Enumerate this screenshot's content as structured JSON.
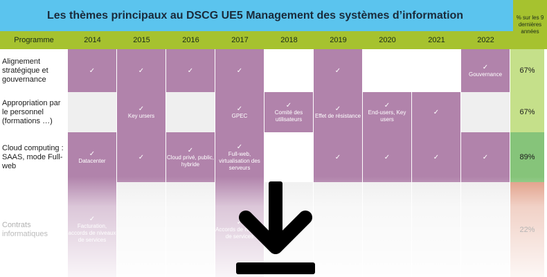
{
  "title": "Les thèmes principaux au DSCG UE5 Management des systèmes d’information",
  "pct_header": "% sur les 9 dernières années",
  "header": {
    "program": "Programme",
    "years": [
      "2014",
      "2015",
      "2016",
      "2017",
      "2018",
      "2019",
      "2020",
      "2021",
      "2022"
    ]
  },
  "rows": [
    {
      "label": "Alignement stratégique et gouvernance",
      "pct": "67%",
      "pct_color": "#c5e08a",
      "cells": [
        {
          "on": true,
          "check": "✓",
          "text": ""
        },
        {
          "on": true,
          "check": "✓",
          "text": ""
        },
        {
          "on": true,
          "check": "✓",
          "text": ""
        },
        {
          "on": true,
          "check": "✓",
          "text": ""
        },
        {
          "on": false,
          "bg": "white",
          "check": "",
          "text": ""
        },
        {
          "on": true,
          "check": "✓",
          "text": ""
        },
        {
          "on": false,
          "bg": "white",
          "check": "",
          "text": ""
        },
        {
          "on": false,
          "bg": "white",
          "check": "",
          "text": ""
        },
        {
          "on": true,
          "check": "✓",
          "text": "Gouvernance"
        }
      ]
    },
    {
      "label": "Appropriation par le personnel (formations …)",
      "pct": "67%",
      "pct_color": "#c5e08a",
      "cells": [
        {
          "on": false,
          "bg": "grey",
          "check": "",
          "text": ""
        },
        {
          "on": true,
          "check": "✓",
          "text": "Key ursers"
        },
        {
          "on": false,
          "bg": "grey",
          "check": "",
          "text": ""
        },
        {
          "on": true,
          "check": "✓",
          "text": "GPEC"
        },
        {
          "on": true,
          "check": "✓",
          "text": "Comité des utilisateurs"
        },
        {
          "on": true,
          "check": "✓",
          "text": "Effet de résistance"
        },
        {
          "on": true,
          "check": "✓",
          "text": "End-users, Key users"
        },
        {
          "on": true,
          "check": "✓",
          "text": ""
        },
        {
          "on": false,
          "bg": "grey",
          "check": "",
          "text": ""
        }
      ]
    },
    {
      "label": "Cloud computing : SAAS, mode Full-web",
      "pct": "89%",
      "pct_color": "#86c47a",
      "cells": [
        {
          "on": true,
          "check": "✓",
          "text": "Datacenter"
        },
        {
          "on": true,
          "check": "✓",
          "text": ""
        },
        {
          "on": true,
          "check": "✓",
          "text": "Cloud privé, public, hybride"
        },
        {
          "on": true,
          "check": "✓",
          "text": "Full-web, virtualisation des serveurs"
        },
        {
          "on": false,
          "bg": "white",
          "check": "",
          "text": ""
        },
        {
          "on": true,
          "check": "✓",
          "text": ""
        },
        {
          "on": true,
          "check": "✓",
          "text": ""
        },
        {
          "on": true,
          "check": "✓",
          "text": ""
        },
        {
          "on": true,
          "check": "✓",
          "text": ""
        }
      ]
    },
    {
      "label": "Contrats informatiques",
      "pct": "22%",
      "pct_color": "#e09a82",
      "cells": [
        {
          "on": true,
          "check": "✓",
          "text": "Facturation, accords de niveaux de services"
        },
        {
          "on": false,
          "bg": "grey",
          "check": "",
          "text": ""
        },
        {
          "on": false,
          "bg": "grey",
          "check": "",
          "text": ""
        },
        {
          "on": true,
          "check": "✓",
          "text": "Accords de niveaux de services"
        },
        {
          "on": false,
          "bg": "grey",
          "check": "",
          "text": ""
        },
        {
          "on": false,
          "bg": "grey",
          "check": "",
          "text": ""
        },
        {
          "on": false,
          "bg": "grey",
          "check": "",
          "text": ""
        },
        {
          "on": false,
          "bg": "grey",
          "check": "",
          "text": ""
        },
        {
          "on": false,
          "bg": "grey",
          "check": "",
          "text": ""
        }
      ]
    }
  ],
  "overlay_icon": "download-arrow-icon"
}
